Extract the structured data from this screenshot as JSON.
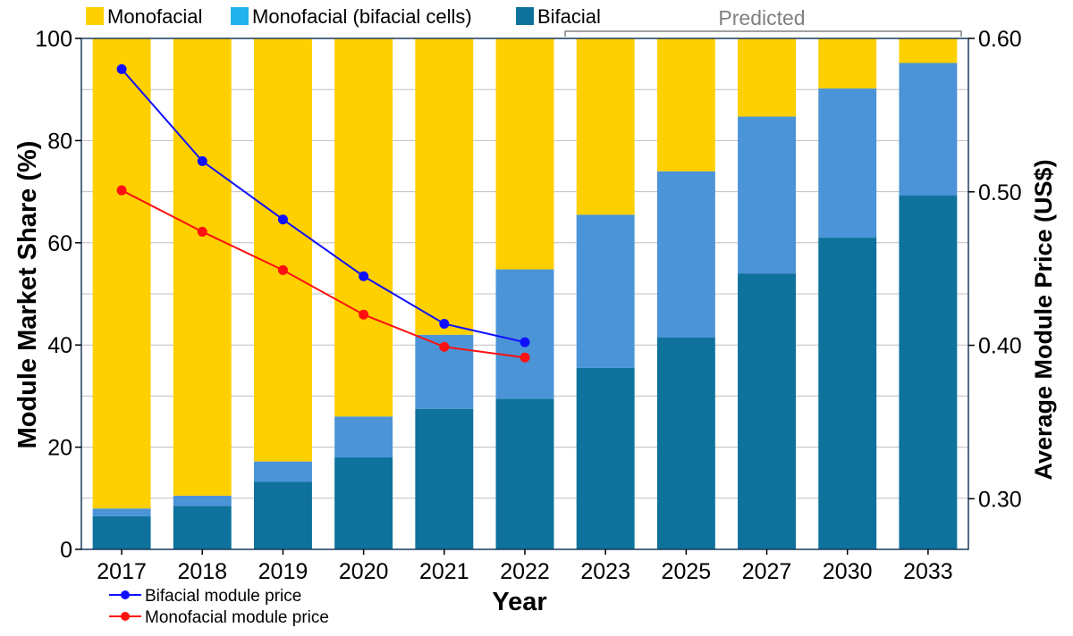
{
  "chart_data": {
    "type": "bar",
    "stacked": true,
    "categories": [
      "2017",
      "2018",
      "2019",
      "2020",
      "2021",
      "2022",
      "2023",
      "2025",
      "2027",
      "2030",
      "2033"
    ],
    "series": [
      {
        "name": "Bifacial",
        "color": "#0e729c",
        "values": [
          6.5,
          8.5,
          13.2,
          18,
          27.5,
          29.5,
          35.5,
          41.5,
          54,
          61,
          69.3
        ]
      },
      {
        "name": "Monofacial (bifacial cells)",
        "color": "#4b94d8",
        "values": [
          1.5,
          2,
          4,
          8,
          14.5,
          25.3,
          30,
          32.5,
          30.7,
          29.2,
          25.9
        ]
      },
      {
        "name": "Monofacial",
        "color": "#ffd000",
        "values": [
          92,
          89.5,
          82.8,
          74,
          58,
          45.2,
          34.5,
          26,
          15.3,
          9.8,
          4.8
        ]
      }
    ],
    "legend": [
      {
        "label": "Monofacial",
        "color": "#ffd000"
      },
      {
        "label": "Monofacial (bifacial cells)",
        "color": "#22b2ee"
      },
      {
        "label": "Bifacial",
        "color": "#0e729c"
      }
    ],
    "price_series": [
      {
        "name": "Bifacial module price",
        "color": "#1010ff",
        "categories": [
          "2017",
          "2018",
          "2019",
          "2020",
          "2021",
          "2022"
        ],
        "values": [
          0.58,
          0.52,
          0.482,
          0.445,
          0.414,
          0.402
        ]
      },
      {
        "name": "Monofacial module price",
        "color": "#ff1010",
        "categories": [
          "2017",
          "2018",
          "2019",
          "2020",
          "2021",
          "2022"
        ],
        "values": [
          0.501,
          0.474,
          0.449,
          0.42,
          0.399,
          0.392
        ]
      }
    ],
    "predicted_label": "Predicted",
    "predicted_categories": [
      "2023",
      "2025",
      "2027",
      "2030",
      "2033"
    ],
    "xlabel": "Year",
    "ylabel": "Module Market Share (%)",
    "y2label": "Average Module Price (US$)",
    "ylim": [
      0,
      100
    ],
    "yticks": [
      0,
      20,
      40,
      60,
      80,
      100
    ],
    "ytick_labels": [
      "0",
      "20",
      "40",
      "60",
      "80",
      "100"
    ],
    "y2lim": [
      0.267,
      0.6
    ],
    "y2ticks": [
      0.3,
      0.4,
      0.5,
      0.6
    ],
    "y2tick_labels": [
      "0.30",
      "0.40",
      "0.50",
      "0.60"
    ],
    "grid": true
  }
}
